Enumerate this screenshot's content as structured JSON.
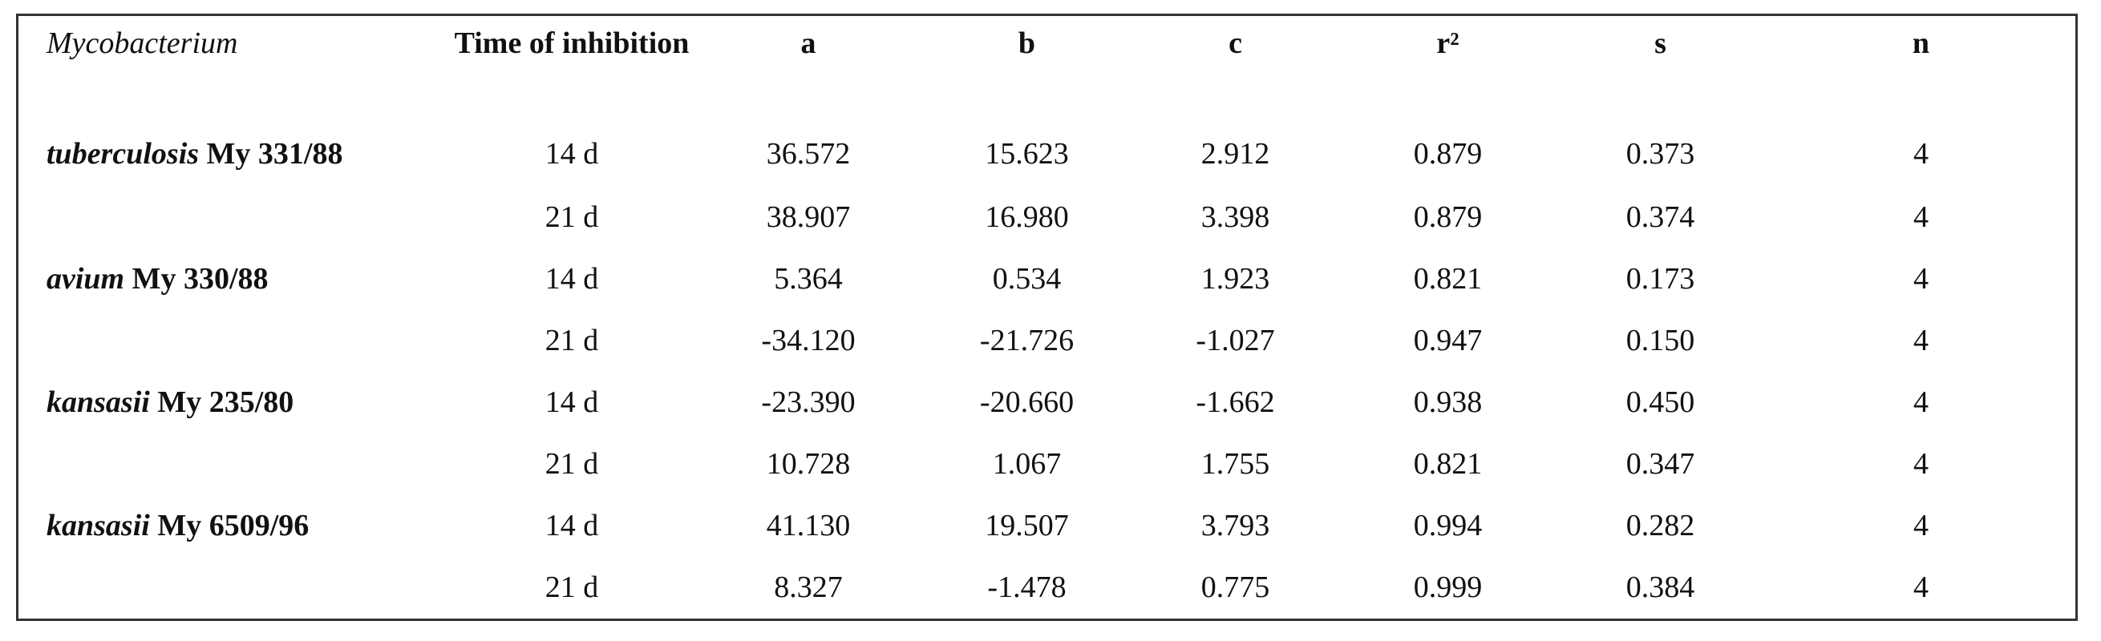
{
  "table": {
    "headers": [
      "Mycobacterium",
      "Time of inhibition",
      "a",
      "b",
      "c",
      "r²",
      "s",
      "n"
    ],
    "rows": [
      {
        "species": "tuberculosis",
        "strain": "My 331/88",
        "time": "14 d",
        "a": "36.572",
        "b": "15.623",
        "c": "2.912",
        "r2": "0.879",
        "s": "0.373",
        "n": "4"
      },
      {
        "species": "",
        "strain": "",
        "time": "21 d",
        "a": "38.907",
        "b": "16.980",
        "c": "3.398",
        "r2": "0.879",
        "s": "0.374",
        "n": "4"
      },
      {
        "species": "avium",
        "strain": "My 330/88",
        "time": "14 d",
        "a": "5.364",
        "b": "0.534",
        "c": "1.923",
        "r2": "0.821",
        "s": "0.173",
        "n": "4"
      },
      {
        "species": "",
        "strain": "",
        "time": "21 d",
        "a": "-34.120",
        "b": "-21.726",
        "c": "-1.027",
        "r2": "0.947",
        "s": "0.150",
        "n": "4"
      },
      {
        "species": "kansasii",
        "strain": "My 235/80",
        "time": "14 d",
        "a": "-23.390",
        "b": "-20.660",
        "c": "-1.662",
        "r2": "0.938",
        "s": "0.450",
        "n": "4"
      },
      {
        "species": "",
        "strain": "",
        "time": "21 d",
        "a": "10.728",
        "b": "1.067",
        "c": "1.755",
        "r2": "0.821",
        "s": "0.347",
        "n": "4"
      },
      {
        "species": "kansasii",
        "strain": "My 6509/96",
        "time": "14 d",
        "a": "41.130",
        "b": "19.507",
        "c": "3.793",
        "r2": "0.994",
        "s": "0.282",
        "n": "4"
      },
      {
        "species": "",
        "strain": "",
        "time": "21 d",
        "a": "8.327",
        "b": "-1.478",
        "c": "0.775",
        "r2": "0.999",
        "s": "0.384",
        "n": "4"
      }
    ]
  }
}
